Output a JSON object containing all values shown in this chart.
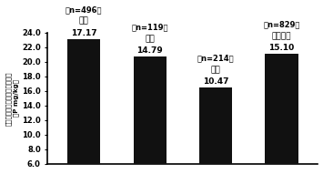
{
  "values": [
    17.17,
    14.79,
    10.47,
    15.1
  ],
  "labels_val": [
    "17.17",
    "14.79",
    "10.47",
    "15.10"
  ],
  "labels_city": [
    "封丘",
    "原阳",
    "倍阳",
    "加权平均"
  ],
  "labels_n": [
    "（n=496）",
    "（n=119）",
    "（n=214）",
    "（n=829）"
  ],
  "bar_color": "#111111",
  "ylim": [
    6.0,
    24.0
  ],
  "yticks": [
    6.0,
    8.0,
    10.0,
    12.0,
    14.0,
    16.0,
    18.0,
    20.0,
    22.0,
    24.0
  ],
  "background_color": "#ffffff",
  "bar_width": 0.5,
  "bar_positions": [
    0,
    1,
    2,
    3
  ]
}
